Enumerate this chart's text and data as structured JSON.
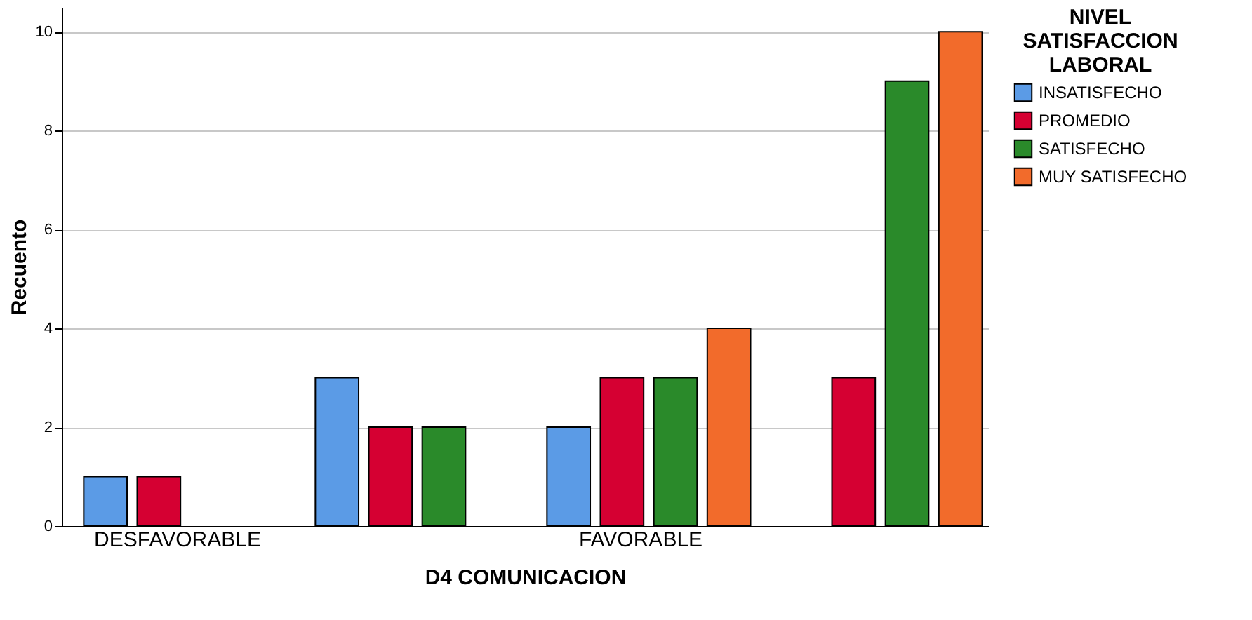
{
  "chart_data": {
    "type": "bar",
    "xlabel": "D4 COMUNICACION",
    "ylabel": "Recuento",
    "legend_title": "NIVEL SATISFACCION LABORAL",
    "categories": [
      "DESFAVORABLE",
      null,
      "FAVORABLE",
      null
    ],
    "series": [
      {
        "name": "INSATISFECHO",
        "color": "#5b9be6",
        "values": [
          1,
          3,
          2,
          null
        ]
      },
      {
        "name": "PROMEDIO",
        "color": "#d50032",
        "values": [
          1,
          2,
          3,
          3
        ]
      },
      {
        "name": "SATISFECHO",
        "color": "#2a8a2a",
        "values": [
          null,
          2,
          3,
          9
        ]
      },
      {
        "name": "MUY SATISFECHO",
        "color": "#f26b2b",
        "values": [
          null,
          null,
          4,
          10
        ]
      }
    ],
    "ylim": [
      0,
      10.5
    ],
    "yticks": [
      0,
      2,
      4,
      6,
      8,
      10
    ],
    "grid": "y",
    "legend": "top right"
  }
}
